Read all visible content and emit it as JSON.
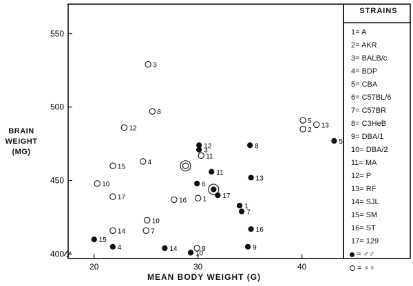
{
  "chart_data": {
    "type": "scatter",
    "ylabel_lines": [
      "BRAIN",
      "WEIGHT",
      "(MG)"
    ],
    "xlabel": "MEAN BODY WEIGHT (G)",
    "xlim": [
      17.5,
      44
    ],
    "ylim": [
      397,
      570
    ],
    "x_ticks": [
      20,
      30,
      40
    ],
    "y_ticks": [
      400,
      450,
      500,
      550
    ],
    "grid": false,
    "legend_title": "STRAINS",
    "strains": [
      "1= A",
      "2= AKR",
      "3= BALB/c",
      "4= BDP",
      "5= CBA",
      "6= C57BL/6",
      "7= C57BR",
      "8= C3HeB",
      "9= DBA/1",
      "10= DBA/2",
      "11= MA",
      "12= P",
      "13= RF",
      "14= SJL",
      "15= SM",
      "16= ST",
      "17= 129"
    ],
    "symbol_key": {
      "male": "= ♂♂",
      "female": "= ♀♀"
    },
    "series": [
      {
        "name": "male",
        "marker": "filled",
        "points": [
          {
            "x": 20.0,
            "y": 410,
            "label": "15"
          },
          {
            "x": 21.8,
            "y": 405,
            "label": "4"
          },
          {
            "x": 26.8,
            "y": 404,
            "label": "14"
          },
          {
            "x": 29.3,
            "y": 401,
            "label": "10"
          },
          {
            "x": 29.9,
            "y": 448,
            "label": "6"
          },
          {
            "x": 30.1,
            "y": 474,
            "label": "12"
          },
          {
            "x": 30.1,
            "y": 471,
            "label": "3"
          },
          {
            "x": 31.3,
            "y": 456,
            "label": "11"
          },
          {
            "x": 31.9,
            "y": 440,
            "label": "17"
          },
          {
            "x": 34.0,
            "y": 433,
            "label": "1"
          },
          {
            "x": 34.2,
            "y": 429,
            "label": "7"
          },
          {
            "x": 35.0,
            "y": 474,
            "label": "8"
          },
          {
            "x": 35.1,
            "y": 452,
            "label": "13"
          },
          {
            "x": 35.1,
            "y": 417,
            "label": "16"
          },
          {
            "x": 34.8,
            "y": 405,
            "label": "9"
          },
          {
            "x": 43.1,
            "y": 477,
            "label": "5"
          }
        ]
      },
      {
        "name": "female",
        "marker": "open",
        "points": [
          {
            "x": 25.2,
            "y": 529,
            "label": "3"
          },
          {
            "x": 25.6,
            "y": 497,
            "label": "8"
          },
          {
            "x": 22.9,
            "y": 486,
            "label": "12"
          },
          {
            "x": 24.7,
            "y": 463,
            "label": "4"
          },
          {
            "x": 21.8,
            "y": 460,
            "label": "15"
          },
          {
            "x": 20.3,
            "y": 448,
            "label": "10"
          },
          {
            "x": 21.8,
            "y": 439,
            "label": "17"
          },
          {
            "x": 27.7,
            "y": 437,
            "label": "16"
          },
          {
            "x": 30.0,
            "y": 438,
            "label": "1"
          },
          {
            "x": 25.1,
            "y": 423,
            "label": "10"
          },
          {
            "x": 25.0,
            "y": 416,
            "label": "7"
          },
          {
            "x": 21.8,
            "y": 416,
            "label": "14"
          },
          {
            "x": 29.9,
            "y": 404,
            "label": "9"
          },
          {
            "x": 30.3,
            "y": 467,
            "label": "11"
          },
          {
            "x": 40.1,
            "y": 491,
            "label": "5"
          },
          {
            "x": 40.1,
            "y": 485,
            "label": "2"
          },
          {
            "x": 41.4,
            "y": 488,
            "label": "13"
          }
        ]
      }
    ],
    "highlighted": [
      {
        "x": 28.8,
        "y": 460,
        "kind": "open"
      },
      {
        "x": 31.5,
        "y": 444,
        "kind": "filled"
      }
    ]
  }
}
